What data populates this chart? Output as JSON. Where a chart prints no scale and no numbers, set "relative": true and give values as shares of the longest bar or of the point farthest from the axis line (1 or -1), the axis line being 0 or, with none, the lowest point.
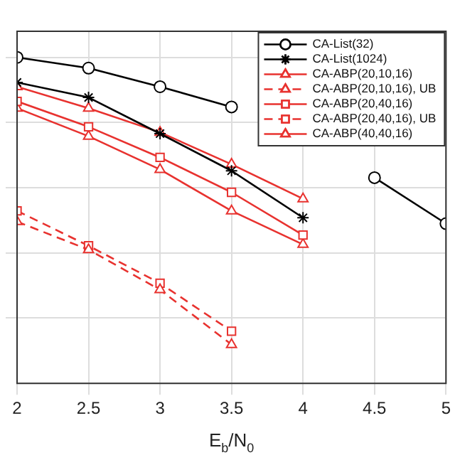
{
  "chart_data": {
    "type": "line",
    "relative": true,
    "xlabel": "E$_{b}$/N$_{0}$",
    "x": [
      2,
      2.5,
      3,
      3.5,
      4,
      4.5,
      5
    ],
    "xlim": [
      2,
      5
    ],
    "xticks": [
      2,
      2.5,
      3,
      3.5,
      4,
      4.5,
      5
    ],
    "grid": true,
    "legend": "top right",
    "series": [
      {
        "name": "CA-List(32)",
        "color": "#000000",
        "marker": "circle",
        "line_style": "solid",
        "values": [
          1,
          0.967,
          0.91,
          0.848,
          null,
          0.631,
          0.49
        ]
      },
      {
        "name": "CA-List(1024)",
        "color": "#000000",
        "marker": "cross",
        "line_style": "solid",
        "values": [
          0.923,
          0.877,
          0.766,
          0.652,
          0.508,
          null,
          null
        ]
      },
      {
        "name": "CA-ABP(20,10,16)",
        "color": "#e8322f",
        "marker": "triangle",
        "line_style": "solid",
        "values": [
          0.91,
          0.844,
          0.77,
          0.672,
          0.566,
          null,
          null
        ]
      },
      {
        "name": "CA-ABP(20,10,16), UB",
        "color": "#e8322f",
        "marker": "triangle",
        "line_style": "dashed",
        "values": [
          0.496,
          0.41,
          0.287,
          0.119,
          null,
          null,
          null
        ]
      },
      {
        "name": "CA-ABP(20,40,16)",
        "color": "#e8322f",
        "marker": "square",
        "line_style": "solid",
        "values": [
          0.865,
          0.787,
          0.693,
          0.586,
          0.455,
          null,
          null
        ]
      },
      {
        "name": "CA-ABP(20,40,16), UB",
        "color": "#e8322f",
        "marker": "square",
        "line_style": "dashed",
        "values": [
          0.529,
          0.422,
          0.307,
          0.16,
          null,
          null,
          null
        ]
      },
      {
        "name": "CA-ABP(40,40,16)",
        "color": "#e8322f",
        "marker": "triangle",
        "line_style": "solid",
        "values": [
          0.844,
          0.758,
          0.656,
          0.529,
          0.426,
          null,
          null
        ]
      }
    ]
  }
}
